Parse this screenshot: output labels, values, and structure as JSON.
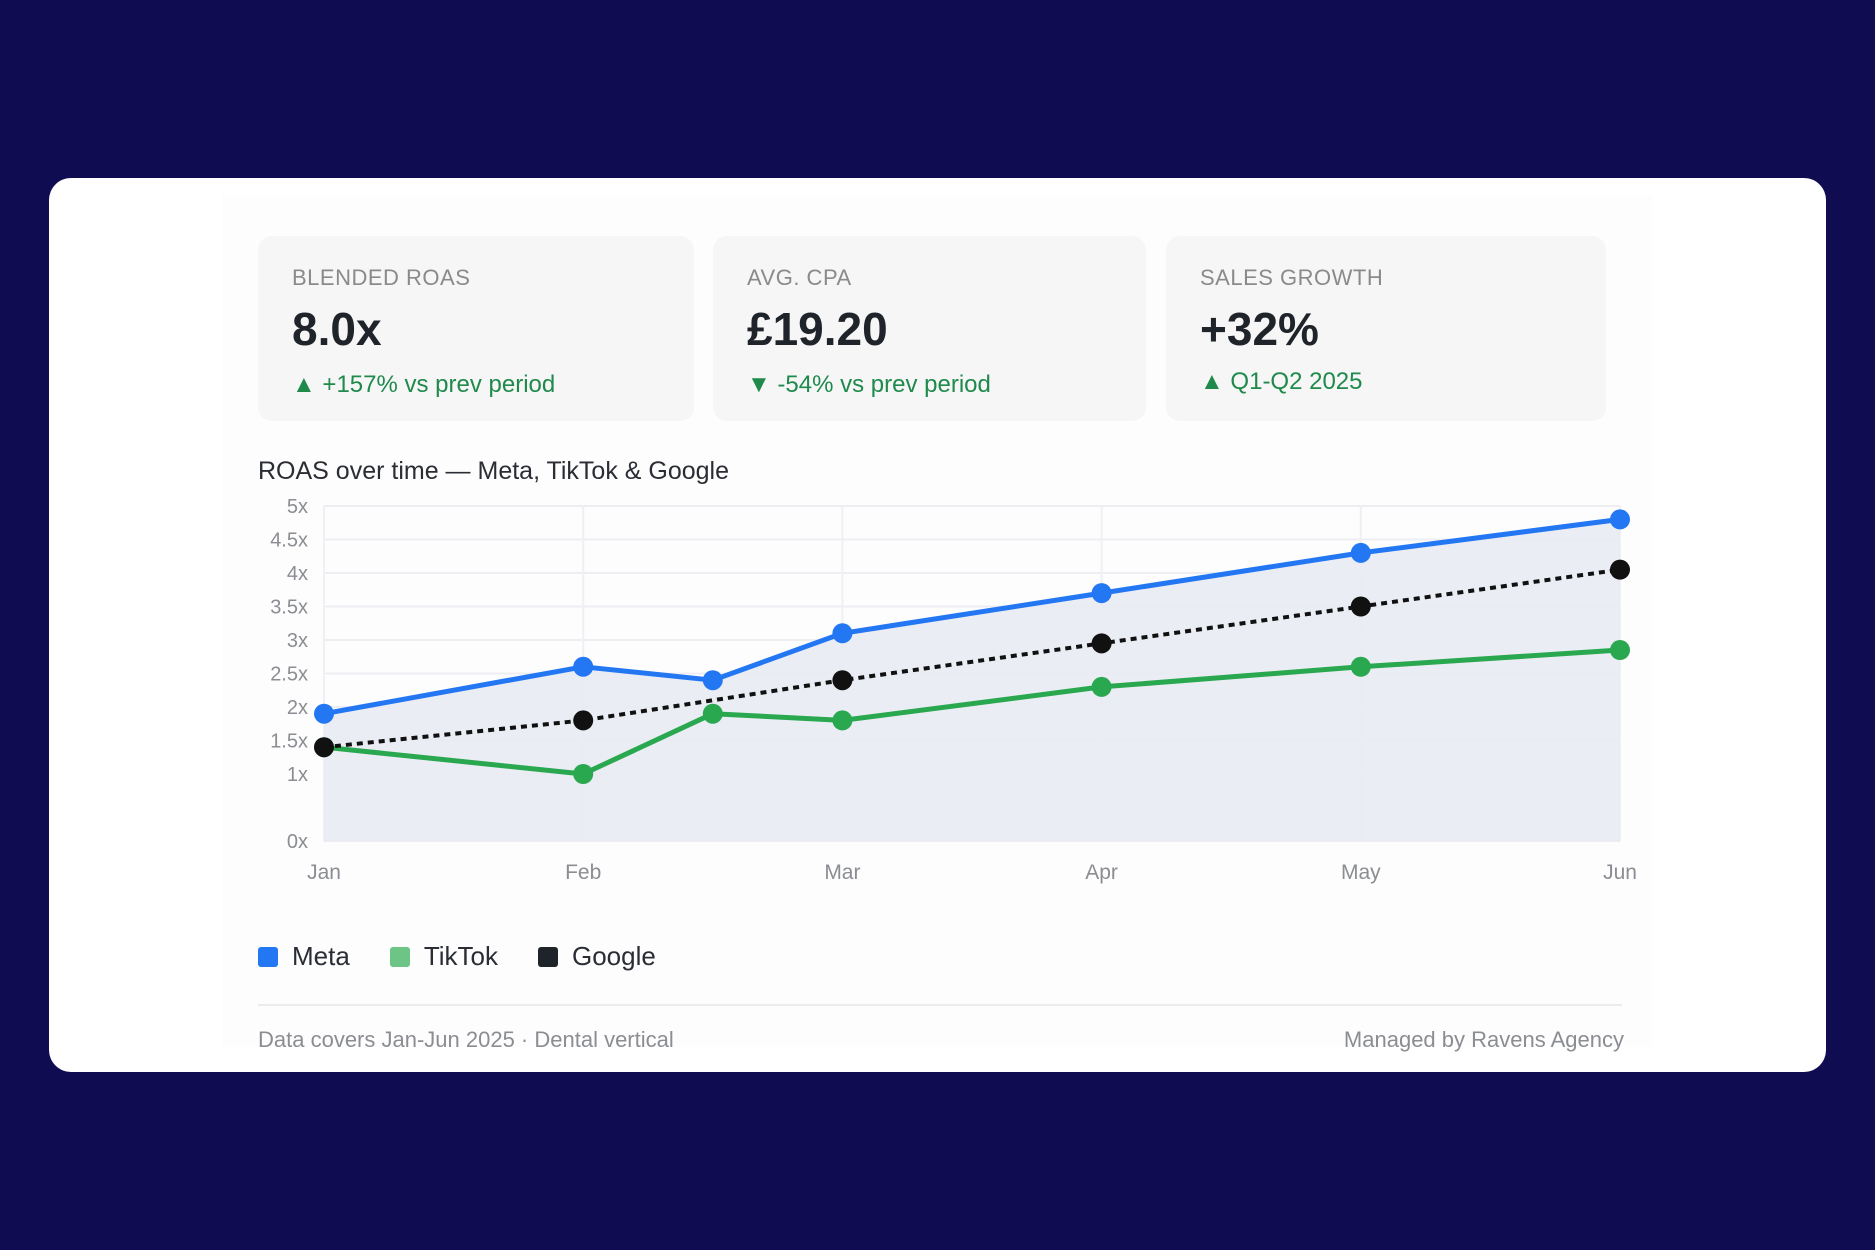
{
  "kpis": [
    {
      "label": "BLENDED ROAS",
      "value": "8.0x",
      "delta": "+157% vs prev period",
      "direction": "up"
    },
    {
      "label": "AVG. CPA",
      "value": "£19.20",
      "delta": "-54% vs prev period",
      "direction": "down"
    },
    {
      "label": "SALES GROWTH",
      "value": "+32%",
      "delta": "Q1-Q2 2025",
      "direction": "up"
    }
  ],
  "chart_data": {
    "type": "line",
    "title": "ROAS over time — Meta, TikTok & Google",
    "categories": [
      "Jan",
      "Feb",
      "Mar",
      "Apr",
      "May",
      "Jun"
    ],
    "x": [
      0,
      1,
      1.5,
      2,
      3,
      4,
      5
    ],
    "yticks": [
      "0x",
      "1x",
      "1.5x",
      "2x",
      "2.5x",
      "3x",
      "3.5x",
      "4x",
      "4.5x",
      "5x"
    ],
    "ylim": [
      0,
      5
    ],
    "grid": true,
    "legend_position": "bottom-left",
    "series": [
      {
        "name": "Meta",
        "color": "#2477f2",
        "style": "solid",
        "area": true,
        "values": [
          1.9,
          2.6,
          2.4,
          3.1,
          3.7,
          4.3,
          4.8
        ]
      },
      {
        "name": "TikTok",
        "color": "#2aa84f",
        "legend_color": "#6cc584",
        "style": "solid",
        "values": [
          1.4,
          1.0,
          1.9,
          1.8,
          2.3,
          2.6,
          2.85
        ]
      },
      {
        "name": "Google",
        "color": "#111111",
        "legend_color": "#1f232a",
        "style": "dotted",
        "values": [
          1.4,
          1.8,
          null,
          2.4,
          2.95,
          3.5,
          4.05
        ]
      }
    ]
  },
  "footer": {
    "left": "Data covers Jan-Jun 2025 · Dental vertical",
    "right": "Managed by Ravens Agency"
  },
  "icons": {
    "up": "triangle-up-icon",
    "down": "triangle-down-icon"
  }
}
